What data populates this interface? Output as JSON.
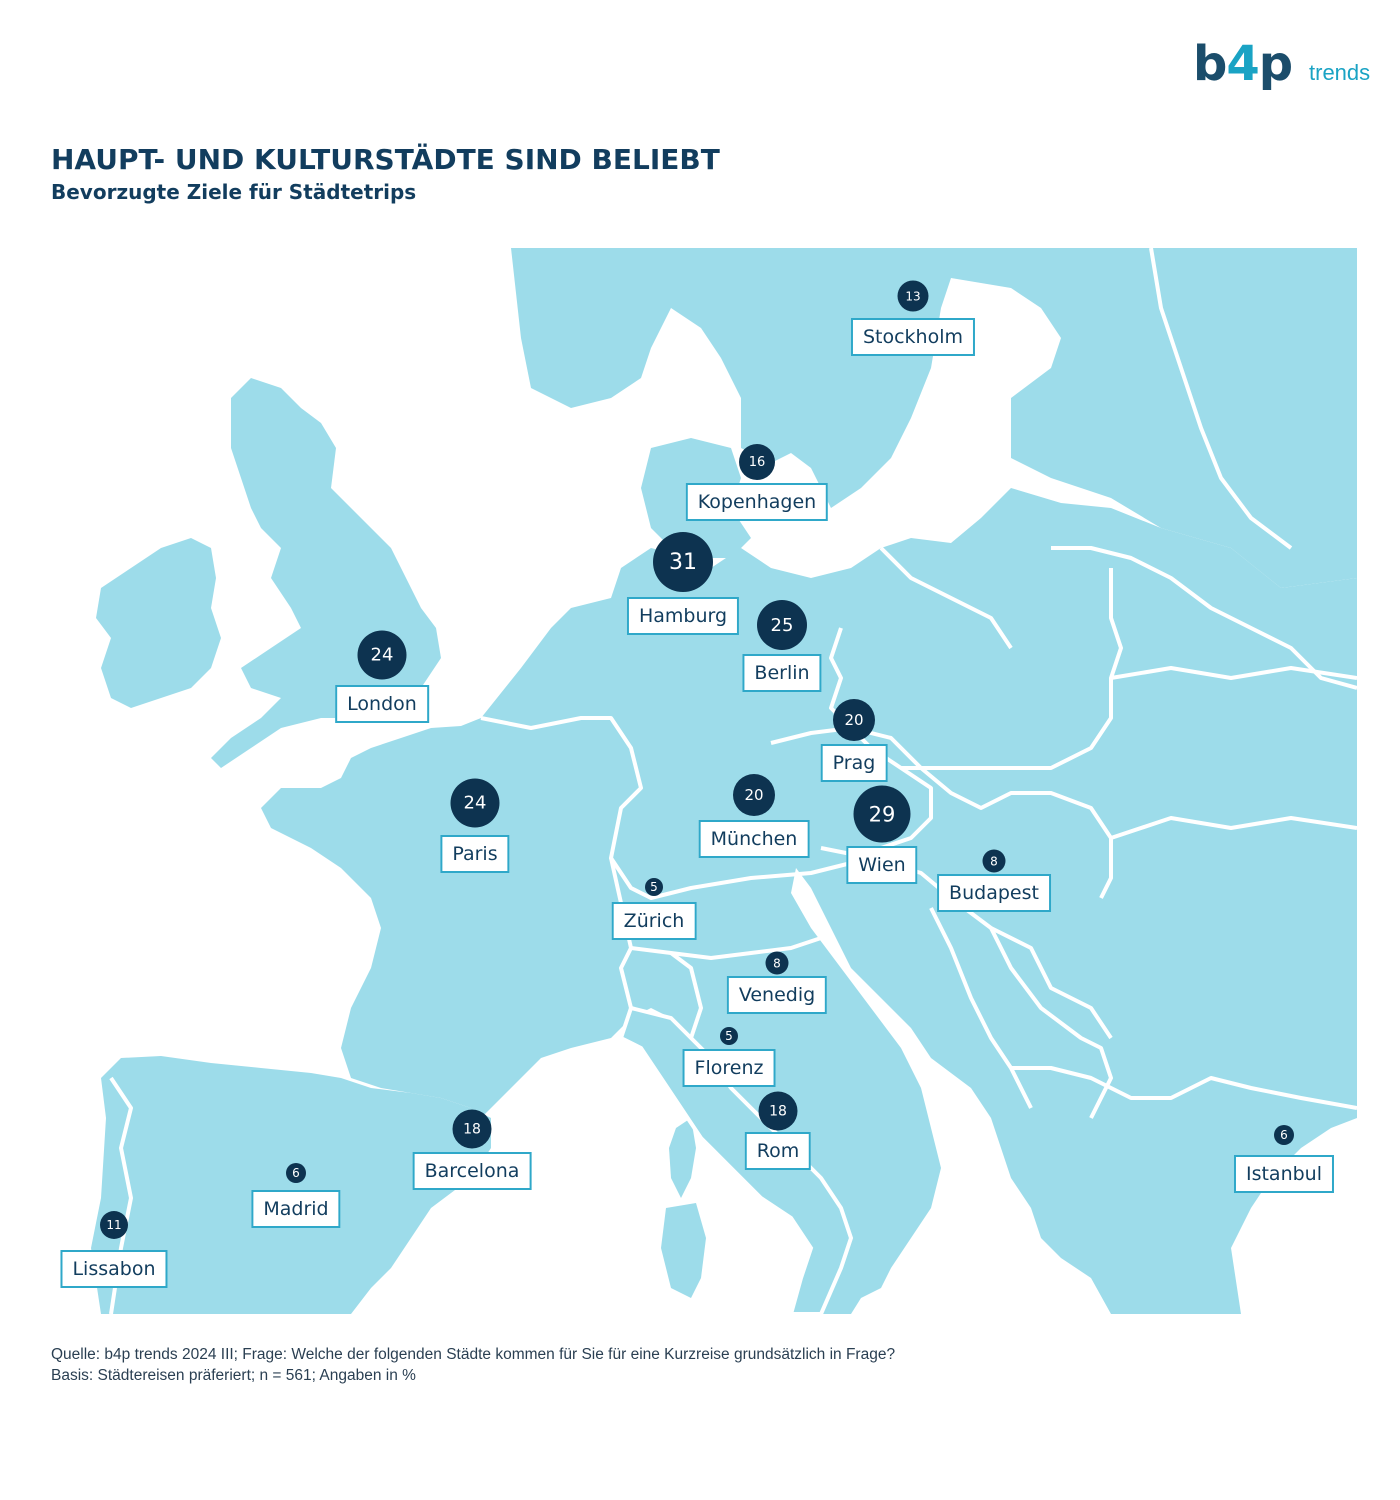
{
  "logo": {
    "brand_left": "b",
    "brand_four": "4",
    "brand_right": "p",
    "brand_suffix": "trends"
  },
  "header": {
    "title": "HAUPT- UND KULTURSTÄDTE SIND BELIEBT",
    "subtitle": "Bevorzugte Ziele für Städtetrips"
  },
  "colors": {
    "land": "#9ddcea",
    "border": "#ffffff",
    "marker": "#0d3350",
    "label_border": "#2fa8c9",
    "title": "#123d5e"
  },
  "cities": [
    {
      "name": "Stockholm",
      "value": 13
    },
    {
      "name": "Kopenhagen",
      "value": 16
    },
    {
      "name": "Hamburg",
      "value": 31
    },
    {
      "name": "Berlin",
      "value": 25
    },
    {
      "name": "London",
      "value": 24
    },
    {
      "name": "Prag",
      "value": 20
    },
    {
      "name": "Paris",
      "value": 24
    },
    {
      "name": "München",
      "value": 20
    },
    {
      "name": "Wien",
      "value": 29
    },
    {
      "name": "Budapest",
      "value": 8
    },
    {
      "name": "Zürich",
      "value": 5
    },
    {
      "name": "Venedig",
      "value": 8
    },
    {
      "name": "Florenz",
      "value": 5
    },
    {
      "name": "Rom",
      "value": 18
    },
    {
      "name": "Barcelona",
      "value": 18
    },
    {
      "name": "Madrid",
      "value": 6
    },
    {
      "name": "Istanbul",
      "value": 6
    },
    {
      "name": "Lissabon",
      "value": 11
    }
  ],
  "footer": {
    "source": "Quelle: b4p trends 2024 III; Frage: Welche der folgenden Städte kommen für Sie für eine Kurzreise grundsätzlich in Frage?",
    "basis": "Basis: Städtereisen präferiert; n = 561; Angaben in %"
  }
}
